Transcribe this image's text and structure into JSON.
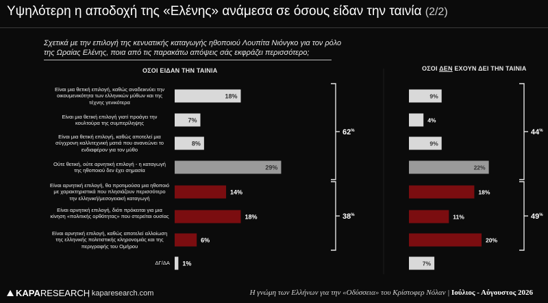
{
  "title": "Υψηλότερη η αποδοχή της «Ελένης» ανάμεσα σε όσους είδαν την ταινία",
  "title_suffix": "(2/2)",
  "question": "Σχετικά με την επιλογή της κενυατικής καταγωγής ηθοποιού Λουπίτα Νιόνγκο για τον ρόλο της Ωραίας Ελένης, ποια από τις παρακάτω απόψεις σάς εκφράζει περισσότερο;",
  "colors": {
    "positive": "#d9d9d9",
    "neutral": "#9a9a9a",
    "negative": "#7b0d10",
    "background": "#0b0b0b"
  },
  "chart_data": {
    "type": "bar",
    "orientation": "horizontal",
    "categories": [
      "Είναι μια θετική επιλογή, καθώς αναδεικνύει την οικουμενικότητα των ελληνικών μύθων και της τέχνης γενικότερα",
      "Είναι μια θετική επιλογή γιατί προάγει την κουλτούρα της συμπερίληψης",
      "Είναι μια θετική επιλογή, καθώς αποτελεί μια σύγχρονη καλλιτεχνική ματιά που ανανεώνει το ενδιαφέρον για τον μύθο",
      "Ούτε θετική, ούτε αρνητική επιλογή - η καταγωγή της ηθοποιού δεν έχει σημασία",
      "Είναι αρνητική επιλογή, θα προτιμούσα μια ηθοποιό με χαρακτηριστικά που πλησιάζουν περισσότερο την ελληνική/μεσογειακή καταγωγή",
      "Είναι αρνητική επιλογή, διότι πρόκειται για μια κίνηση «πολιτικής ορθότητας» που στερείται ουσίας",
      "Είναι αρνητική επιλογή, καθώς αποτελεί αλλοίωση της ελληνικής πολιτιστικής κληρονομιάς και της περιγραφής του Ομήρου",
      "ΔΓ/ΔΑ"
    ],
    "category_groups": [
      "positive",
      "positive",
      "positive",
      "neutral",
      "negative",
      "negative",
      "negative",
      "positive"
    ],
    "unit": "%",
    "series": [
      {
        "name": "ΟΣΟΙ ΕΙΔΑΝ ΤΗΝ ΤΑΙΝΙΑ",
        "values": [
          18,
          7,
          8,
          29,
          14,
          18,
          6,
          1
        ]
      },
      {
        "name": "ΟΣΟΙ ΔΕΝ ΕΧΟΥΝ ΔΕΙ ΤΗΝ ΤΑΙΝΙΑ",
        "values": [
          9,
          4,
          9,
          22,
          18,
          11,
          20,
          7
        ]
      }
    ],
    "totals": [
      {
        "series": 0,
        "group": "positive",
        "value": "62"
      },
      {
        "series": 0,
        "group": "negative",
        "value": "38"
      },
      {
        "series": 1,
        "group": "positive",
        "value": "44"
      },
      {
        "series": 1,
        "group": "negative",
        "value": "49"
      }
    ],
    "grid": false,
    "legend": "none"
  },
  "header_right": {
    "before": "ΟΣΟΙ ",
    "underlined": "ΔΕΝ",
    "after": " ΕΧΟΥΝ ΔΕΙ ΤΗΝ ΤΑΙΝΙΑ"
  },
  "footer": {
    "logo_bold": "KAPA",
    "logo_light": "RESEARCH",
    "website": "kaparesearch.com",
    "source_text": "Η γνώμη των Ελλήνων για την «Οδύσσεια» του Κρίστοφερ Νόλαν",
    "date": "Ιούλιος - Αύγουστος 2026"
  }
}
